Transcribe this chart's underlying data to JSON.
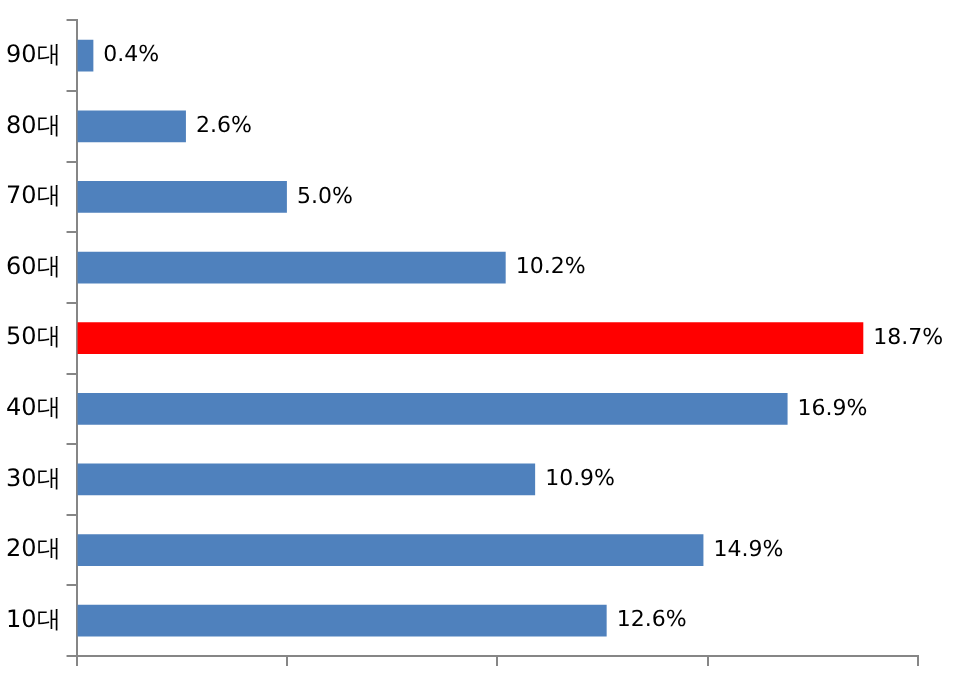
{
  "chart_data": {
    "type": "bar",
    "orientation": "horizontal",
    "categories": [
      "90대",
      "80대",
      "70대",
      "60대",
      "50대",
      "40대",
      "30대",
      "20대",
      "10대"
    ],
    "values": [
      0.4,
      2.6,
      5.0,
      10.2,
      18.7,
      16.9,
      10.9,
      14.9,
      12.6
    ],
    "colors": [
      "#4f81bd",
      "#4f81bd",
      "#4f81bd",
      "#4f81bd",
      "#ff0000",
      "#4f81bd",
      "#4f81bd",
      "#4f81bd",
      "#4f81bd"
    ],
    "value_labels": [
      "0.4%",
      "2.6%",
      "5.0%",
      "10.2%",
      "18.7%",
      "16.9%",
      "10.9%",
      "14.9%",
      "12.6%"
    ],
    "xlim": [
      0,
      20
    ],
    "xticks": [
      {
        "value": 0,
        "label": null
      },
      {
        "value": 5,
        "label": null
      },
      {
        "value": 10,
        "label": null
      },
      {
        "value": 15,
        "label": null
      },
      {
        "value": 20,
        "label": null
      }
    ],
    "tick_labels": "y",
    "grid": false,
    "legend": false
  }
}
